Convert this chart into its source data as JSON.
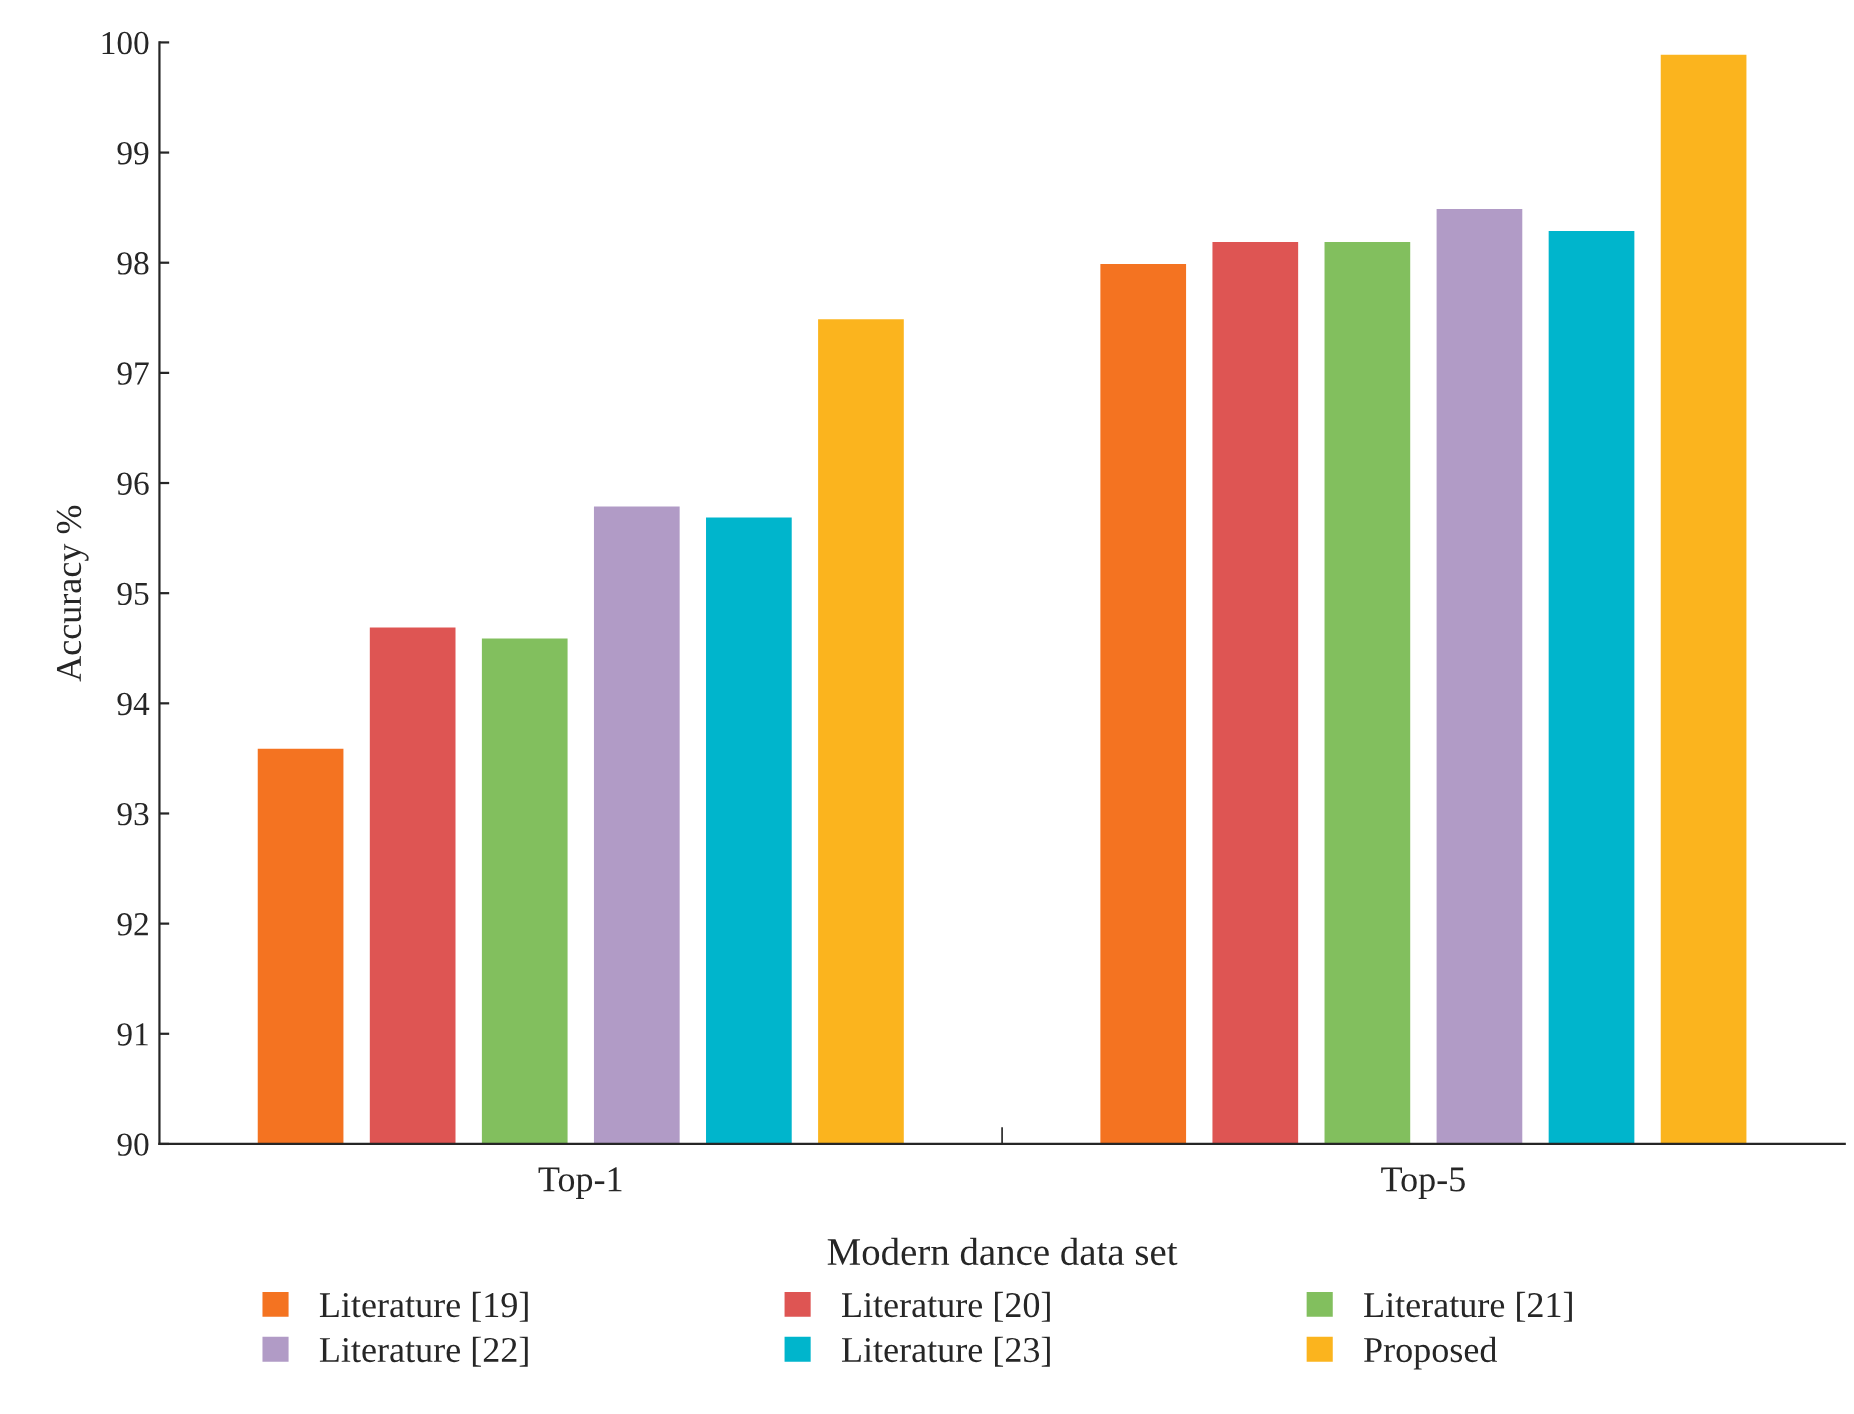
{
  "chart_data": {
    "type": "bar",
    "categories": [
      "Top-1",
      "Top-5"
    ],
    "series": [
      {
        "name": "Literature [19]",
        "color": "#f47321",
        "values": [
          93.6,
          98.0
        ]
      },
      {
        "name": "Literature [20]",
        "color": "#de5553",
        "values": [
          94.7,
          98.2
        ]
      },
      {
        "name": "Literature [21]",
        "color": "#82bf5e",
        "values": [
          94.6,
          98.2
        ]
      },
      {
        "name": "Literature [22]",
        "color": "#b19bc6",
        "values": [
          95.8,
          98.5
        ]
      },
      {
        "name": "Literature [23]",
        "color": "#00b5cc",
        "values": [
          95.7,
          98.3
        ]
      },
      {
        "name": "Proposed",
        "color": "#fbb41e",
        "values": [
          97.5,
          99.9
        ]
      }
    ],
    "xlabel": "Modern dance data set",
    "ylabel": "Accuracy %",
    "ylim": [
      90,
      100
    ],
    "yticks": [
      90,
      91,
      92,
      93,
      94,
      95,
      96,
      97,
      98,
      99,
      100
    ],
    "grid": false,
    "legend": "bottom"
  }
}
